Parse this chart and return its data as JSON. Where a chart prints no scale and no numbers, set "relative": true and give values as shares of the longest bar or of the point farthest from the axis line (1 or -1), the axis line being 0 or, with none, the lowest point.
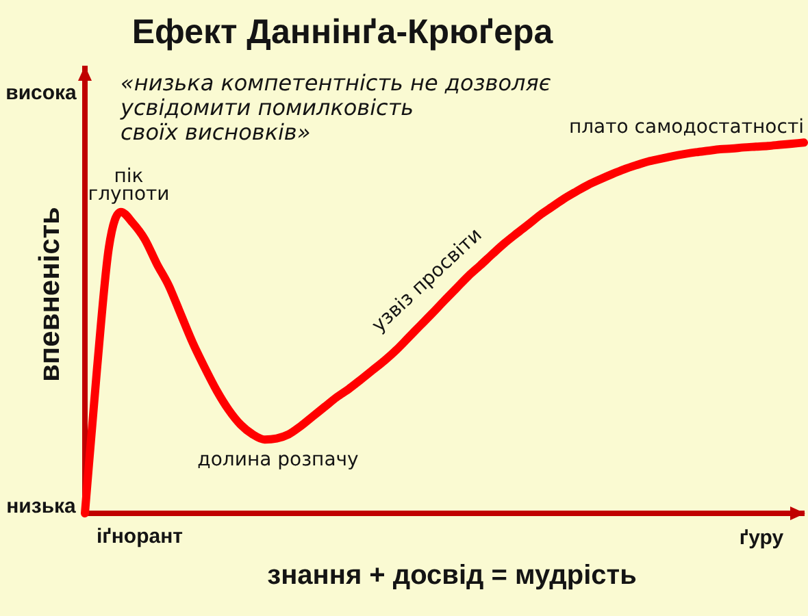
{
  "chart_data": {
    "type": "line",
    "title": "Ефект Даннінґа-Крюґера",
    "xlabel": "знання + досвід = мудрість",
    "ylabel": "впевненість",
    "relative": true,
    "tick_labels": false,
    "categories": [
      null,
      null,
      null,
      null,
      null,
      null,
      null,
      null,
      null,
      null,
      null,
      null,
      null,
      null,
      null,
      null,
      null,
      null,
      null,
      null,
      null,
      null,
      null,
      null,
      null,
      null,
      null,
      null,
      null,
      null,
      null,
      null,
      null,
      null,
      null,
      null,
      null,
      null,
      null,
      null,
      null,
      null,
      null,
      null,
      null,
      null,
      null,
      null,
      null,
      null,
      null,
      null,
      null,
      null,
      null,
      null,
      null,
      null,
      null,
      null,
      null
    ],
    "series": [
      {
        "color": "#ff0000",
        "values": [
          0,
          0.386,
          0.717,
          0.813,
          0.783,
          0.739,
          0.673,
          0.614,
          0.537,
          0.46,
          0.393,
          0.331,
          0.279,
          0.239,
          0.213,
          0.199,
          0.202,
          0.213,
          0.235,
          0.261,
          0.287,
          0.313,
          0.335,
          0.36,
          0.386,
          0.412,
          0.441,
          0.474,
          0.507,
          0.54,
          0.574,
          0.607,
          0.64,
          0.669,
          0.699,
          0.728,
          0.754,
          0.779,
          0.805,
          0.827,
          0.849,
          0.868,
          0.886,
          0.901,
          0.915,
          0.928,
          0.939,
          0.949,
          0.956,
          0.963,
          0.969,
          0.974,
          0.978,
          0.982,
          0.984,
          0.987,
          0.989,
          0.991,
          0.994,
          0.997,
          1
        ]
      }
    ],
    "annotations": [
      "висока",
      "низька",
      "іґнорант",
      "ґуру",
      "«низька компетентність не дозволяє\nусвідомити помилковість\nсвоїх висновків»",
      "пік\nглупоти",
      "долина розпачу",
      "узвіз просвіти",
      "плато самодостатності"
    ]
  }
}
